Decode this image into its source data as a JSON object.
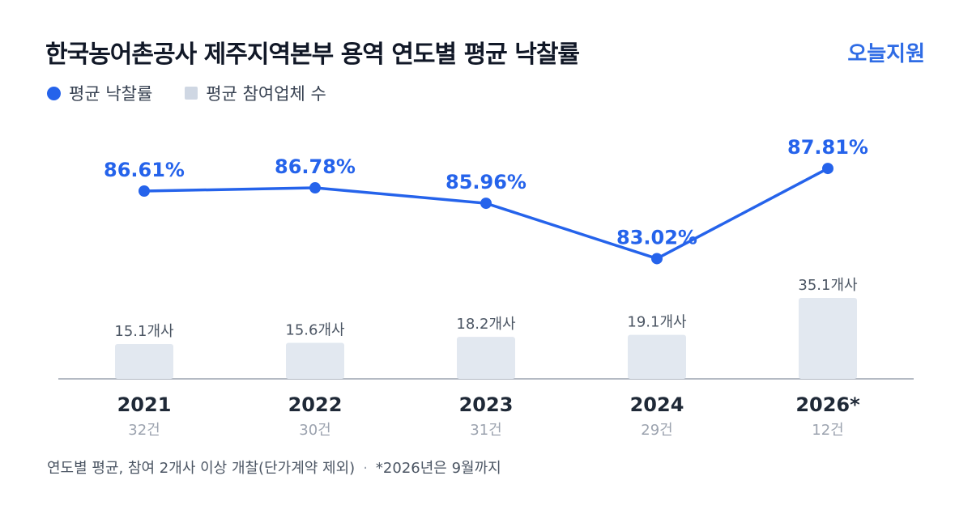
{
  "header": {
    "title": "한국농어촌공사 제주지역본부 용역 연도별 평균 낙찰률",
    "brand": "오늘지원"
  },
  "legend": {
    "rate_label": "평균 낙찰률",
    "bidders_label": "평균 참여업체 수"
  },
  "colors": {
    "line": "#2563eb",
    "bar": "#e2e8f0",
    "axis": "#9ca3af"
  },
  "chart_data": {
    "type": "line",
    "categories": [
      "2021",
      "2022",
      "2023",
      "2024",
      "2026*"
    ],
    "case_counts": [
      "32건",
      "30건",
      "31건",
      "29건",
      "12건"
    ],
    "series": [
      {
        "name": "평균 낙찰률",
        "type": "line",
        "values": [
          86.61,
          86.78,
          85.96,
          83.02,
          87.81
        ],
        "labels": [
          "86.61%",
          "86.78%",
          "85.96%",
          "83.02%",
          "87.81%"
        ]
      },
      {
        "name": "평균 참여업체 수",
        "type": "bar",
        "values": [
          15.1,
          15.6,
          18.2,
          19.1,
          35.1
        ],
        "labels": [
          "15.1개사",
          "15.6개사",
          "18.2개사",
          "19.1개사",
          "35.1개사"
        ]
      }
    ],
    "grid": false,
    "legend_position": "top-left"
  },
  "footnote": {
    "main": "연도별 평균, 참여 2개사 이상 개찰(단가계약 제외)",
    "separator": "·",
    "note": "*2026년은 9월까지"
  }
}
